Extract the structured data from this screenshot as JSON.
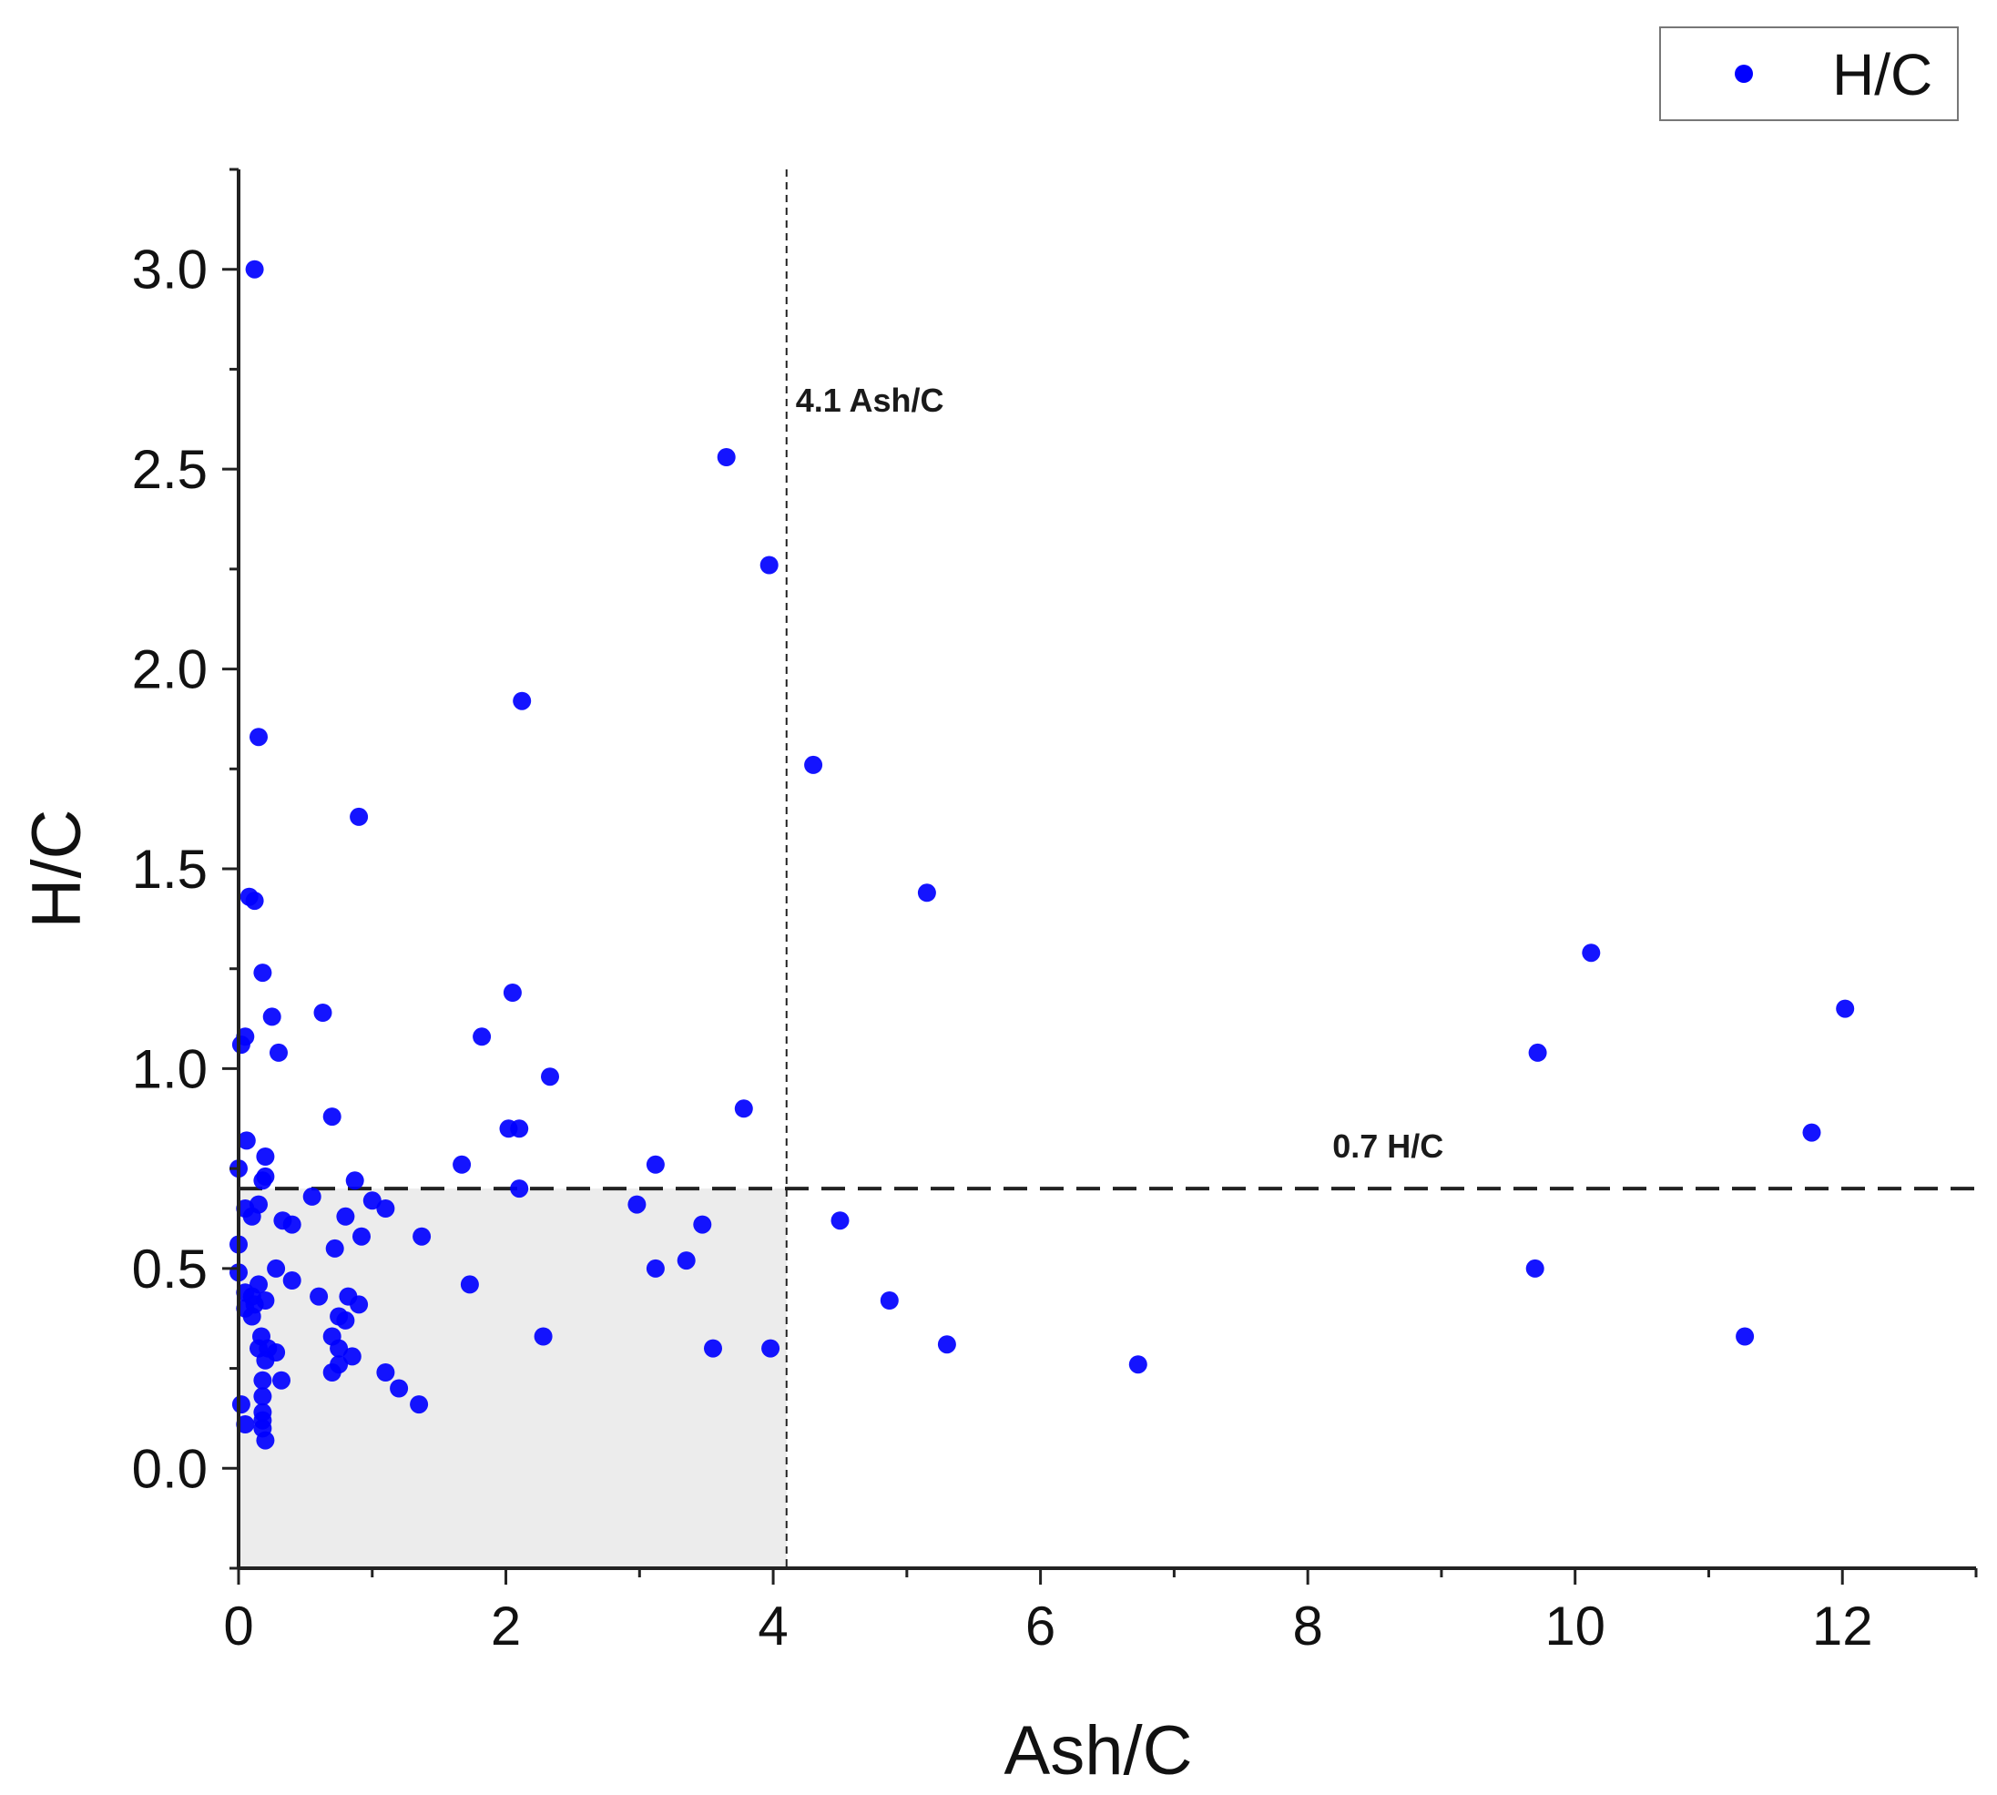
{
  "chart_data": {
    "type": "scatter",
    "title": "",
    "xlabel": "Ash/C",
    "ylabel": "H/C",
    "xlim": [
      0,
      13
    ],
    "ylim": [
      -0.25,
      3.25
    ],
    "x_ticks": [
      0,
      2,
      4,
      6,
      8,
      10,
      12
    ],
    "x_tick_labels": [
      "0",
      "2",
      "4",
      "6",
      "8",
      "10",
      "12"
    ],
    "y_ticks": [
      0.0,
      0.5,
      1.0,
      1.5,
      2.0,
      2.5,
      3.0
    ],
    "y_tick_labels": [
      "0.0",
      "0.5",
      "1.0",
      "1.5",
      "2.0",
      "2.5",
      "3.0"
    ],
    "grid": false,
    "legend": {
      "position": "top-right",
      "entries": [
        "H/C"
      ]
    },
    "colors": {
      "points": "#0000ff",
      "shade": "#ececec",
      "axis": "#222222",
      "ref_lines": "#222222"
    },
    "shaded_region": {
      "x": [
        0,
        4.1
      ],
      "y": [
        -0.25,
        0.7
      ]
    },
    "reference_lines": [
      {
        "orientation": "vertical",
        "value": 4.1,
        "label": "4.1 Ash/C"
      },
      {
        "orientation": "horizontal",
        "value": 0.7,
        "label": "0.7 H/C"
      }
    ],
    "series": [
      {
        "name": "H/C",
        "points": [
          [
            0.12,
            3.0
          ],
          [
            3.65,
            2.53
          ],
          [
            3.97,
            2.26
          ],
          [
            2.12,
            1.92
          ],
          [
            0.15,
            1.83
          ],
          [
            4.3,
            1.76
          ],
          [
            0.9,
            1.63
          ],
          [
            5.15,
            1.44
          ],
          [
            0.08,
            1.43
          ],
          [
            0.12,
            1.42
          ],
          [
            0.18,
            1.24
          ],
          [
            10.12,
            1.29
          ],
          [
            0.63,
            1.14
          ],
          [
            0.25,
            1.13
          ],
          [
            12.02,
            1.15
          ],
          [
            2.05,
            1.19
          ],
          [
            0.05,
            1.08
          ],
          [
            0.02,
            1.06
          ],
          [
            0.3,
            1.04
          ],
          [
            1.82,
            1.08
          ],
          [
            9.72,
            1.04
          ],
          [
            2.33,
            0.98
          ],
          [
            3.78,
            0.9
          ],
          [
            0.7,
            0.88
          ],
          [
            2.02,
            0.85
          ],
          [
            2.1,
            0.85
          ],
          [
            0.06,
            0.82
          ],
          [
            11.77,
            0.84
          ],
          [
            0.2,
            0.78
          ],
          [
            0.0,
            0.75
          ],
          [
            1.67,
            0.76
          ],
          [
            3.12,
            0.76
          ],
          [
            0.18,
            0.72
          ],
          [
            0.2,
            0.73
          ],
          [
            0.87,
            0.72
          ],
          [
            2.1,
            0.7
          ],
          [
            1.0,
            0.67
          ],
          [
            1.1,
            0.65
          ],
          [
            0.05,
            0.65
          ],
          [
            0.15,
            0.66
          ],
          [
            0.1,
            0.63
          ],
          [
            0.55,
            0.68
          ],
          [
            2.98,
            0.66
          ],
          [
            0.33,
            0.62
          ],
          [
            0.4,
            0.61
          ],
          [
            0.8,
            0.63
          ],
          [
            3.47,
            0.61
          ],
          [
            4.5,
            0.62
          ],
          [
            0.92,
            0.58
          ],
          [
            1.37,
            0.58
          ],
          [
            0.0,
            0.56
          ],
          [
            0.72,
            0.55
          ],
          [
            3.35,
            0.52
          ],
          [
            3.12,
            0.5
          ],
          [
            0.28,
            0.5
          ],
          [
            9.7,
            0.5
          ],
          [
            0.0,
            0.49
          ],
          [
            0.4,
            0.47
          ],
          [
            1.73,
            0.46
          ],
          [
            0.15,
            0.46
          ],
          [
            0.05,
            0.44
          ],
          [
            0.1,
            0.43
          ],
          [
            0.6,
            0.43
          ],
          [
            0.82,
            0.43
          ],
          [
            0.2,
            0.42
          ],
          [
            4.87,
            0.42
          ],
          [
            0.05,
            0.4
          ],
          [
            0.12,
            0.41
          ],
          [
            0.9,
            0.41
          ],
          [
            0.1,
            0.38
          ],
          [
            0.75,
            0.38
          ],
          [
            0.8,
            0.37
          ],
          [
            0.17,
            0.33
          ],
          [
            0.7,
            0.33
          ],
          [
            2.28,
            0.33
          ],
          [
            11.27,
            0.33
          ],
          [
            0.15,
            0.3
          ],
          [
            0.22,
            0.3
          ],
          [
            0.75,
            0.3
          ],
          [
            3.98,
            0.3
          ],
          [
            3.55,
            0.3
          ],
          [
            5.3,
            0.31
          ],
          [
            0.28,
            0.29
          ],
          [
            0.85,
            0.28
          ],
          [
            0.2,
            0.27
          ],
          [
            0.75,
            0.26
          ],
          [
            0.7,
            0.24
          ],
          [
            6.73,
            0.26
          ],
          [
            1.1,
            0.24
          ],
          [
            0.18,
            0.22
          ],
          [
            0.32,
            0.22
          ],
          [
            1.2,
            0.2
          ],
          [
            0.18,
            0.18
          ],
          [
            1.35,
            0.16
          ],
          [
            0.02,
            0.16
          ],
          [
            0.18,
            0.14
          ],
          [
            0.18,
            0.12
          ],
          [
            0.05,
            0.11
          ],
          [
            0.18,
            0.1
          ],
          [
            0.2,
            0.07
          ]
        ]
      }
    ]
  }
}
